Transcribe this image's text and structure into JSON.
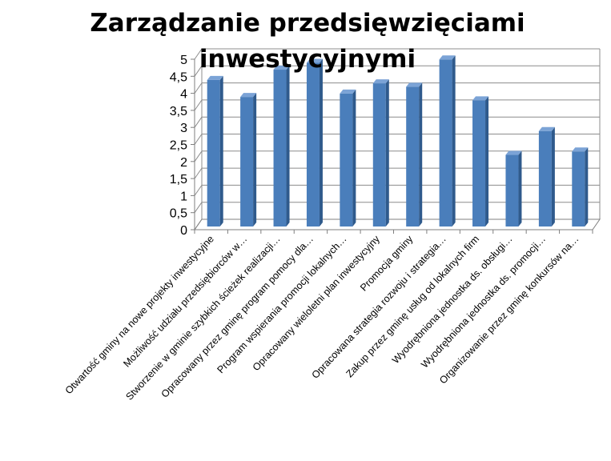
{
  "chart_data": {
    "type": "bar",
    "title_lines": [
      "Zarządzanie przedsięwzięciami",
      "inwestycyjnymi"
    ],
    "categories": [
      "Otwartość gminy na nowe projekty inwestycyjne",
      "Możliwość udziału przedsiębiorców w…",
      "Stworzenie w gminie szybkich ścieżek realizacji…",
      "Opracowany przez gminę program pomocy dla…",
      "Program wspierania promocji lokalnych…",
      "Opracowany wieloletni plan inwestycyjny",
      "Promocja gminy",
      "Opracowana strategia rozwoju i strategia…",
      "Zakup przez gminę usług od lokalnych firm",
      "Wyodrębniona jednostka ds. obsługi…",
      "Wyodrębniona jednostka ds. promocji…",
      "Organizowanie przez gminę konkursów na…"
    ],
    "values": [
      4.3,
      3.8,
      4.6,
      4.8,
      3.9,
      4.2,
      4.1,
      4.9,
      3.7,
      2.1,
      2.8,
      2.2
    ],
    "yticks": [
      "0",
      "0,5",
      "1",
      "1,5",
      "2",
      "2,5",
      "3",
      "3,5",
      "4",
      "4,5",
      "5"
    ],
    "ylim": [
      0,
      5
    ],
    "grid": true,
    "legend": "none",
    "colors": {
      "bar_front": "#4a7ebb",
      "bar_side": "#2f5a8c",
      "bar_top": "#7ba3d6",
      "grid": "#8c8c8c",
      "axis": "#7f7f7f"
    }
  }
}
